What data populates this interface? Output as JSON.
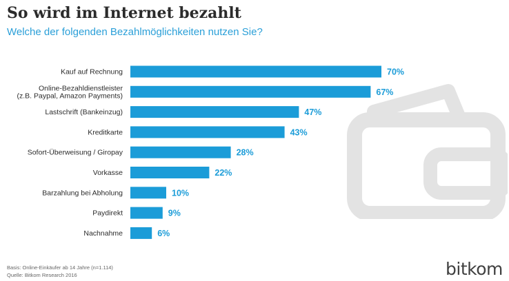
{
  "title": "So wird im Internet bezahlt",
  "subtitle": "Welche der folgenden Bezahlmöglichkeiten nutzen Sie?",
  "footnotes": [
    "Basis: Online-Einkäufer ab 14 Jahre (n=1.114)",
    "Quelle: Bitkom Research 2016"
  ],
  "logo": "bitkom",
  "colors": {
    "bar": "#1b9cd8",
    "value_label": "#1b9cd8",
    "category_label": "#2b2b2b",
    "title": "#2b2b2b",
    "subtitle": "#2a9fd8",
    "wallet_icon": "#e3e3e3"
  },
  "background_icon": "wallet-icon",
  "chart_data": {
    "type": "bar",
    "orientation": "horizontal",
    "categories": [
      [
        "Kauf auf Rechnung"
      ],
      [
        "Online-Bezahldienstleister",
        "(z.B. Paypal, Amazon Payments)"
      ],
      [
        "Lastschrift (Bankeinzug)"
      ],
      [
        "Kreditkarte"
      ],
      [
        "Sofort-Überweisung / Giropay"
      ],
      [
        "Vorkasse"
      ],
      [
        "Barzahlung bei Abholung"
      ],
      [
        "Paydirekt"
      ],
      [
        "Nachnahme"
      ]
    ],
    "values": [
      70,
      67,
      47,
      43,
      28,
      22,
      10,
      9,
      6
    ],
    "value_labels": [
      "70%",
      "67%",
      "47%",
      "43%",
      "28%",
      "22%",
      "10%",
      "9%",
      "6%"
    ],
    "unit": "%",
    "xlim": [
      0,
      100
    ],
    "grid": false,
    "legend": "none"
  }
}
